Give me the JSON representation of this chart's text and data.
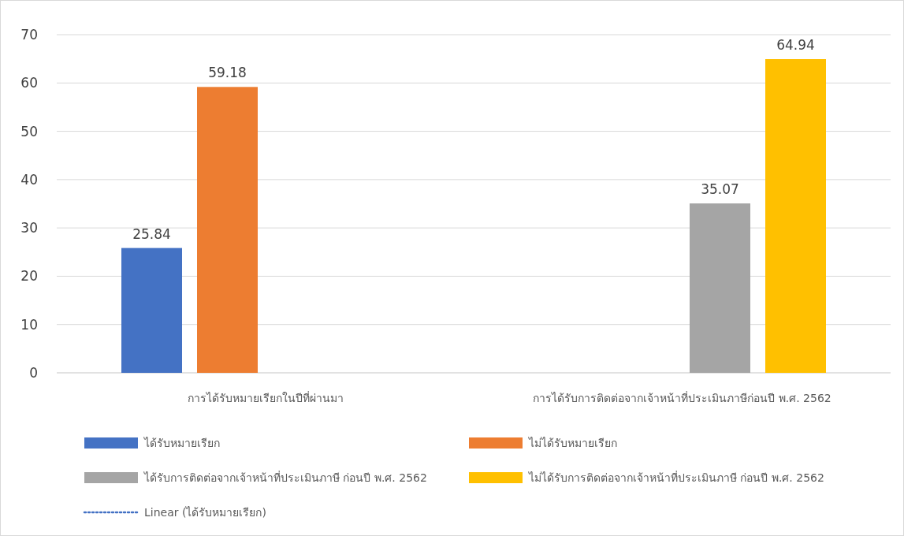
{
  "chart_data": {
    "type": "bar",
    "categories": [
      "การได้รับหมายเรียกในปีที่ผ่านมา",
      "การได้รับการติดต่อจากเจ้าหน้าที่ประเมินภาษีก่อนปี  พ.ศ. 2562"
    ],
    "series": [
      {
        "name": "ได้รับหมายเรียก",
        "color": "#4472c4",
        "values": [
          25.84,
          null
        ]
      },
      {
        "name": "ไม่ได้รับหมายเรียก",
        "color": "#ed7d31",
        "values": [
          59.18,
          null
        ]
      },
      {
        "name": "ได้รับการติดต่อจากเจ้าหน้าที่ประเมินภาษี  ก่อนปี  พ.ศ. 2562",
        "color": "#a5a5a5",
        "values": [
          null,
          35.07
        ]
      },
      {
        "name": "ไม่ได้รับการติดต่อจากเจ้าหน้าที่ประเมินภาษี  ก่อนปี  พ.ศ. 2562",
        "color": "#ffc000",
        "values": [
          null,
          64.94
        ]
      },
      {
        "name": "Linear (ได้รับหมายเรียก)",
        "type": "line",
        "line_style": "dotted",
        "color": "#4472c4",
        "values": [
          null,
          null
        ]
      }
    ],
    "ylim": [
      0,
      70
    ],
    "yticks": [
      0,
      10,
      20,
      30,
      40,
      50,
      60,
      70
    ],
    "grid": "y",
    "data_labels": true,
    "legend": "bottom"
  }
}
